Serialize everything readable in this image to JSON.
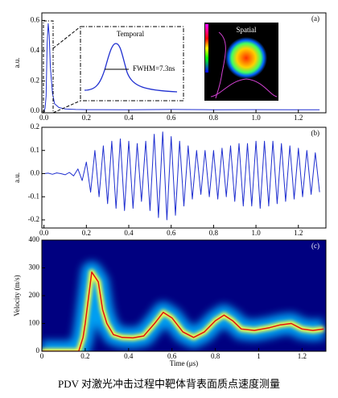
{
  "chart_data": [
    {
      "type": "line",
      "label": "(a)",
      "ylabel": "a.u.",
      "color": "#1f2fd0",
      "x": [
        0,
        0.005,
        0.01,
        0.015,
        0.02,
        0.025,
        0.03,
        0.04,
        0.05,
        0.07,
        0.1,
        0.15,
        0.2,
        0.4,
        0.6,
        0.8,
        1.0,
        1.2,
        1.3
      ],
      "values": [
        0.0,
        0.02,
        0.1,
        0.45,
        0.58,
        0.5,
        0.3,
        0.12,
        0.05,
        0.025,
        0.015,
        0.012,
        0.011,
        0.01,
        0.012,
        0.01,
        0.011,
        0.01,
        0.01
      ],
      "xlim": [
        -0.01,
        1.33
      ],
      "ylim": [
        -0.01,
        0.65
      ],
      "xticks": [
        {
          "value": 0,
          "label": "0.0"
        },
        0.2,
        0.4,
        0.6,
        0.8,
        {
          "value": 1,
          "label": "1.0"
        },
        1.2
      ],
      "yticks": [
        {
          "value": 0,
          "label": "0.0"
        },
        0.2,
        0.4,
        0.6
      ],
      "annotations": [
        "Temporal",
        "FWHM=7.3ns",
        "Spatial"
      ]
    },
    {
      "type": "line",
      "label": "(b)",
      "ylabel": "a.u.",
      "color": "#1f2fd0",
      "x": [
        0,
        0.02,
        0.04,
        0.06,
        0.08,
        0.1,
        0.12,
        0.14,
        0.16,
        0.18,
        0.2,
        0.22,
        0.24,
        0.26,
        0.28,
        0.3,
        0.32,
        0.34,
        0.36,
        0.38,
        0.4,
        0.42,
        0.44,
        0.46,
        0.48,
        0.5,
        0.52,
        0.54,
        0.56,
        0.58,
        0.6,
        0.62,
        0.64,
        0.66,
        0.68,
        0.7,
        0.72,
        0.74,
        0.76,
        0.78,
        0.8,
        0.82,
        0.84,
        0.86,
        0.88,
        0.9,
        0.92,
        0.94,
        0.96,
        0.98,
        1.0,
        1.02,
        1.04,
        1.06,
        1.08,
        1.1,
        1.12,
        1.14,
        1.16,
        1.18,
        1.2,
        1.22,
        1.24,
        1.26,
        1.28,
        1.3
      ],
      "values": [
        0.0,
        0.002,
        -0.003,
        0.003,
        0.0,
        -0.005,
        0.005,
        -0.01,
        0.02,
        -0.03,
        0.05,
        -0.08,
        0.1,
        -0.1,
        0.12,
        -0.13,
        0.14,
        -0.15,
        0.15,
        -0.16,
        0.14,
        -0.15,
        0.13,
        -0.12,
        0.14,
        -0.16,
        0.17,
        -0.19,
        0.18,
        -0.2,
        0.16,
        -0.18,
        0.14,
        -0.14,
        0.12,
        -0.11,
        0.1,
        -0.09,
        0.1,
        -0.1,
        0.1,
        -0.11,
        0.11,
        -0.1,
        0.12,
        -0.12,
        0.13,
        -0.14,
        0.13,
        -0.14,
        0.14,
        -0.15,
        0.14,
        -0.14,
        0.14,
        -0.13,
        0.13,
        -0.12,
        0.12,
        -0.11,
        0.11,
        -0.1,
        0.1,
        -0.09,
        0.09,
        -0.08
      ],
      "xlim": [
        -0.01,
        1.33
      ],
      "ylim": [
        -0.235,
        0.2
      ],
      "xticks": [
        {
          "value": 0,
          "label": "0.0"
        },
        0.2,
        0.4,
        0.6,
        0.8,
        {
          "value": 1,
          "label": "1.0"
        },
        1.2
      ],
      "yticks": [
        0.2,
        0.1,
        {
          "value": 0,
          "label": "0.0"
        },
        -0.1,
        -0.2
      ]
    },
    {
      "type": "spectrogram",
      "label": "(c)",
      "ylabel": "Velocity (m/s)",
      "xlabel": "Time (μs)",
      "color": "#e01010",
      "x": [
        0,
        0.17,
        0.19,
        0.2,
        0.23,
        0.26,
        0.28,
        0.3,
        0.33,
        0.37,
        0.42,
        0.47,
        0.52,
        0.56,
        0.6,
        0.65,
        0.7,
        0.75,
        0.8,
        0.84,
        0.88,
        0.92,
        0.98,
        1.05,
        1.1,
        1.15,
        1.2,
        1.25,
        1.3
      ],
      "values": [
        0,
        0,
        50,
        100,
        285,
        250,
        150,
        100,
        60,
        50,
        48,
        55,
        100,
        140,
        120,
        70,
        50,
        70,
        110,
        130,
        110,
        80,
        75,
        85,
        95,
        100,
        80,
        75,
        80
      ],
      "xlim": [
        0,
        1.31
      ],
      "ylim": [
        0,
        400
      ],
      "xticks": [
        0,
        0.2,
        0.4,
        0.6,
        0.8,
        1,
        1.2
      ],
      "yticks": [
        0,
        100,
        200,
        300,
        400
      ]
    }
  ],
  "caption": "PDV 对激光冲击过程中靶体背表面质点速度测量"
}
